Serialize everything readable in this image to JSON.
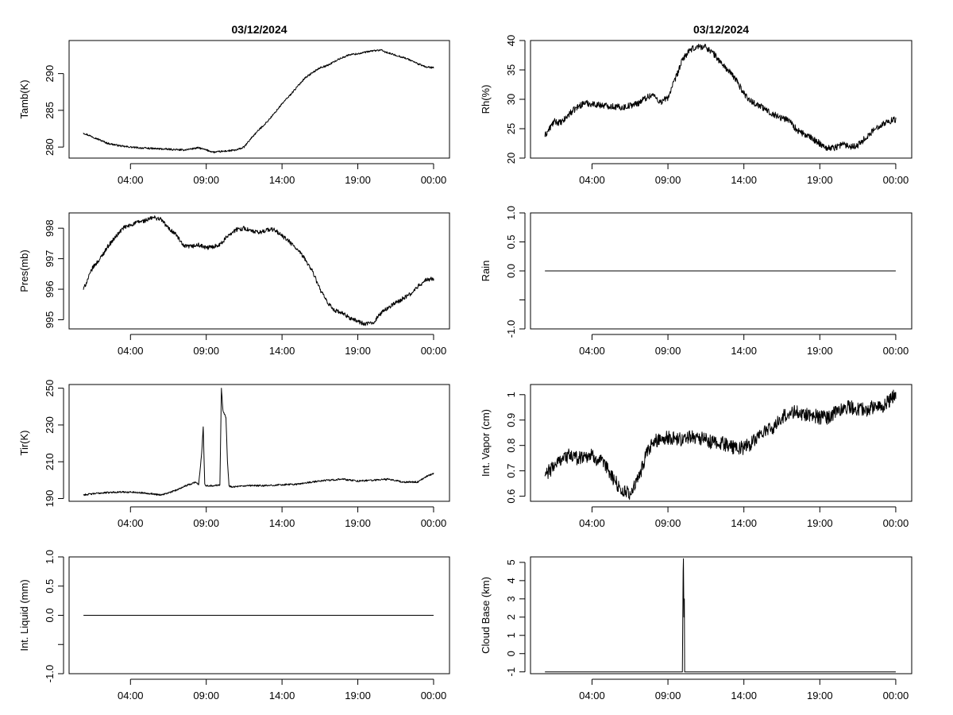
{
  "chart_data": [
    {
      "type": "line",
      "title": "03/12/2024",
      "ylabel": "Tamb(K)",
      "xlabel": "",
      "x_tick_labels": [
        "04:00",
        "09:00",
        "14:00",
        "19:00",
        "00:00"
      ],
      "x_ticks": [
        4,
        9,
        14,
        19,
        24
      ],
      "xlim": [
        -0.05,
        25.05
      ],
      "x_data_range": [
        0.9,
        24
      ],
      "yticks": [
        280,
        285,
        290
      ],
      "ylim": [
        278.5,
        294.5
      ],
      "noise": 0.12,
      "series": [
        {
          "name": "Tamb",
          "x": [
            0.9,
            1.5,
            2.5,
            3.5,
            4.5,
            5.5,
            6.5,
            7.5,
            8.5,
            9.0,
            9.5,
            10.0,
            10.5,
            11.0,
            11.5,
            12.0,
            12.5,
            13.0,
            13.5,
            14.0,
            14.5,
            15.0,
            15.5,
            16.0,
            16.5,
            17.0,
            17.5,
            18.0,
            18.5,
            19.0,
            19.5,
            20.0,
            20.5,
            21.0,
            21.5,
            22.0,
            22.5,
            23.0,
            23.5,
            24.0
          ],
          "values": [
            281.9,
            281.4,
            280.5,
            280.1,
            279.9,
            279.8,
            279.7,
            279.6,
            279.9,
            279.6,
            279.3,
            279.4,
            279.5,
            279.6,
            280.0,
            281.3,
            282.4,
            283.4,
            284.6,
            285.9,
            287.0,
            288.2,
            289.4,
            290.1,
            290.8,
            291.1,
            291.7,
            292.2,
            292.6,
            292.7,
            292.9,
            293.1,
            293.2,
            292.8,
            292.5,
            292.2,
            291.8,
            291.3,
            290.9,
            290.8
          ]
        }
      ]
    },
    {
      "type": "line",
      "title": "03/12/2024",
      "ylabel": "Rh(%)",
      "xlabel": "",
      "x_tick_labels": [
        "04:00",
        "09:00",
        "14:00",
        "19:00",
        "00:00"
      ],
      "x_ticks": [
        4,
        9,
        14,
        19,
        24
      ],
      "xlim": [
        -0.05,
        25.05
      ],
      "x_data_range": [
        0.9,
        24
      ],
      "yticks": [
        20,
        25,
        30,
        35,
        40
      ],
      "ylim": [
        20,
        40
      ],
      "noise": 0.55,
      "series": [
        {
          "name": "Rh",
          "x": [
            0.9,
            1.5,
            2.0,
            2.5,
            3.0,
            3.5,
            4.0,
            5.0,
            6.0,
            7.0,
            7.5,
            8.0,
            8.5,
            9.0,
            9.5,
            10.0,
            10.5,
            11.0,
            11.5,
            12.0,
            12.5,
            13.0,
            13.5,
            14.0,
            14.5,
            15.0,
            15.5,
            16.0,
            16.5,
            17.0,
            17.5,
            18.0,
            18.5,
            19.0,
            19.5,
            20.0,
            20.5,
            21.0,
            21.5,
            22.0,
            22.5,
            23.0,
            23.5,
            24.0
          ],
          "values": [
            23.8,
            26.2,
            26.0,
            27.5,
            28.6,
            29.4,
            29.2,
            28.9,
            28.6,
            29.3,
            30.2,
            30.8,
            29.5,
            30.3,
            33.5,
            37.0,
            38.4,
            39.0,
            38.9,
            37.8,
            36.2,
            34.8,
            33.3,
            31.0,
            29.6,
            29.0,
            28.1,
            27.4,
            26.8,
            26.5,
            24.7,
            24.0,
            23.3,
            22.5,
            21.7,
            21.8,
            22.4,
            22.0,
            22.2,
            23.4,
            24.6,
            25.7,
            26.2,
            26.6
          ]
        }
      ]
    },
    {
      "type": "line",
      "title": "",
      "ylabel": "Pres(mb)",
      "xlabel": "",
      "x_tick_labels": [
        "04:00",
        "09:00",
        "14:00",
        "19:00",
        "00:00"
      ],
      "x_ticks": [
        4,
        9,
        14,
        19,
        24
      ],
      "xlim": [
        -0.05,
        25.05
      ],
      "x_data_range": [
        0.9,
        24
      ],
      "yticks": [
        995,
        996,
        997,
        998
      ],
      "ylim": [
        994.7,
        998.5
      ],
      "noise": 0.07,
      "series": [
        {
          "name": "Pres",
          "x": [
            0.9,
            1.5,
            2.0,
            2.5,
            3.0,
            3.5,
            4.0,
            4.5,
            5.0,
            5.5,
            6.0,
            6.5,
            7.0,
            7.5,
            8.0,
            8.5,
            9.0,
            9.5,
            10.0,
            10.5,
            11.0,
            11.5,
            12.0,
            12.5,
            13.0,
            13.5,
            14.0,
            14.5,
            15.0,
            15.5,
            16.0,
            16.5,
            17.0,
            17.5,
            18.0,
            18.5,
            19.0,
            19.5,
            20.0,
            20.5,
            21.0,
            21.5,
            22.0,
            22.5,
            23.0,
            23.5,
            24.0
          ],
          "values": [
            996.0,
            996.7,
            997.0,
            997.4,
            997.7,
            998.0,
            998.1,
            998.2,
            998.25,
            998.35,
            998.3,
            998.0,
            997.8,
            997.4,
            997.4,
            997.45,
            997.35,
            997.4,
            997.5,
            997.8,
            997.95,
            998.0,
            997.9,
            997.85,
            997.95,
            997.95,
            997.75,
            997.55,
            997.3,
            997.0,
            996.6,
            996.0,
            995.55,
            995.3,
            995.2,
            995.05,
            994.95,
            994.85,
            994.9,
            995.2,
            995.4,
            995.55,
            995.7,
            995.85,
            996.1,
            996.3,
            996.35
          ]
        }
      ]
    },
    {
      "type": "line",
      "title": "",
      "ylabel": "Rain",
      "xlabel": "",
      "x_tick_labels": [
        "04:00",
        "09:00",
        "14:00",
        "19:00",
        "00:00"
      ],
      "x_ticks": [
        4,
        9,
        14,
        19,
        24
      ],
      "xlim": [
        -0.05,
        25.05
      ],
      "x_data_range": [
        0.9,
        24
      ],
      "yticks": [
        -1.0,
        -0.5,
        0.0,
        0.5,
        1.0
      ],
      "ytick_labels": [
        "-1.0",
        "",
        "0.0",
        "0.5",
        "1.0"
      ],
      "ylim": [
        -1.0,
        1.0
      ],
      "noise": 0,
      "series": [
        {
          "name": "Rain",
          "x": [
            0.9,
            24.0
          ],
          "values": [
            0.0,
            0.0
          ]
        }
      ]
    },
    {
      "type": "line",
      "title": "",
      "ylabel": "Tir(K)",
      "xlabel": "",
      "x_tick_labels": [
        "04:00",
        "09:00",
        "14:00",
        "19:00",
        "00:00"
      ],
      "x_ticks": [
        4,
        9,
        14,
        19,
        24
      ],
      "xlim": [
        -0.05,
        25.05
      ],
      "x_data_range": [
        0.9,
        24
      ],
      "yticks": [
        190,
        210,
        230,
        250
      ],
      "ylim": [
        188.5,
        252
      ],
      "noise": 0.45,
      "series": [
        {
          "name": "Tir",
          "x": [
            0.9,
            2.0,
            3.0,
            4.0,
            5.0,
            5.5,
            6.0,
            6.5,
            7.0,
            7.5,
            8.0,
            8.3,
            8.5,
            8.7,
            8.8,
            8.9,
            9.0,
            9.5,
            9.9,
            10.0,
            10.1,
            10.3,
            10.4,
            10.5,
            10.6,
            11.0,
            12.0,
            13.0,
            14.0,
            15.0,
            16.0,
            17.0,
            18.0,
            19.0,
            20.0,
            21.0,
            22.0,
            23.0,
            23.5,
            24.0
          ],
          "values": [
            192.0,
            193.0,
            193.5,
            193.5,
            193.0,
            192.5,
            192.0,
            193.0,
            194.5,
            196.5,
            198.0,
            199.0,
            197.5,
            215.0,
            229.0,
            198.0,
            197.0,
            197.0,
            197.5,
            250.0,
            238.0,
            234.0,
            210.0,
            197.0,
            196.5,
            196.5,
            197.0,
            197.0,
            197.5,
            197.8,
            199.0,
            200.0,
            200.5,
            199.5,
            200.0,
            200.5,
            199.0,
            199.0,
            202.0,
            203.5
          ]
        }
      ]
    },
    {
      "type": "line",
      "title": "",
      "ylabel": "Int. Vapor (cm)",
      "xlabel": "",
      "x_tick_labels": [
        "04:00",
        "09:00",
        "14:00",
        "19:00",
        "00:00"
      ],
      "x_ticks": [
        4,
        9,
        14,
        19,
        24
      ],
      "xlim": [
        -0.05,
        25.05
      ],
      "x_data_range": [
        0.9,
        24
      ],
      "yticks": [
        0.6,
        0.7,
        0.8,
        0.9,
        1.0
      ],
      "ylim": [
        0.58,
        1.04
      ],
      "noise": 0.028,
      "series": [
        {
          "name": "Int. Vapor",
          "x": [
            0.9,
            1.5,
            2.0,
            2.5,
            3.0,
            3.5,
            4.0,
            4.5,
            5.0,
            5.5,
            6.0,
            6.5,
            7.0,
            7.5,
            8.0,
            8.5,
            9.0,
            9.5,
            10.0,
            10.5,
            11.0,
            11.5,
            12.0,
            12.5,
            13.0,
            13.5,
            14.0,
            14.5,
            15.0,
            15.5,
            16.0,
            16.5,
            17.0,
            17.5,
            18.0,
            18.5,
            19.0,
            19.5,
            20.0,
            20.5,
            21.0,
            21.5,
            22.0,
            22.5,
            23.0,
            23.5,
            24.0
          ],
          "values": [
            0.68,
            0.72,
            0.75,
            0.76,
            0.75,
            0.76,
            0.76,
            0.74,
            0.71,
            0.66,
            0.62,
            0.61,
            0.66,
            0.75,
            0.81,
            0.83,
            0.83,
            0.83,
            0.82,
            0.84,
            0.83,
            0.82,
            0.81,
            0.81,
            0.8,
            0.79,
            0.79,
            0.81,
            0.84,
            0.86,
            0.87,
            0.91,
            0.93,
            0.93,
            0.92,
            0.92,
            0.91,
            0.91,
            0.93,
            0.95,
            0.95,
            0.94,
            0.94,
            0.95,
            0.95,
            0.97,
            1.01
          ]
        }
      ]
    },
    {
      "type": "line",
      "title": "",
      "ylabel": "Int. Liquid (mm)",
      "xlabel": "",
      "x_tick_labels": [
        "04:00",
        "09:00",
        "14:00",
        "19:00",
        "00:00"
      ],
      "x_ticks": [
        4,
        9,
        14,
        19,
        24
      ],
      "xlim": [
        -0.05,
        25.05
      ],
      "x_data_range": [
        0.9,
        24
      ],
      "yticks": [
        -1.0,
        -0.5,
        0.0,
        0.5,
        1.0
      ],
      "ytick_labels": [
        "-1.0",
        "",
        "0.0",
        "0.5",
        "1.0"
      ],
      "ylim": [
        -1.0,
        1.0
      ],
      "noise": 0,
      "series": [
        {
          "name": "Int. Liquid",
          "x": [
            0.9,
            24.0
          ],
          "values": [
            0.0,
            0.0
          ]
        }
      ]
    },
    {
      "type": "line",
      "title": "",
      "ylabel": "Cloud Base (km)",
      "xlabel": "",
      "x_tick_labels": [
        "04:00",
        "09:00",
        "14:00",
        "19:00",
        "00:00"
      ],
      "x_ticks": [
        4,
        9,
        14,
        19,
        24
      ],
      "xlim": [
        -0.05,
        25.05
      ],
      "x_data_range": [
        0.9,
        24
      ],
      "yticks": [
        -1,
        0,
        1,
        2,
        3,
        4,
        5
      ],
      "ylim": [
        -1.1,
        5.3
      ],
      "noise": 0,
      "series": [
        {
          "name": "Cloud Base",
          "x": [
            0.9,
            9.95,
            10.0,
            10.02,
            10.05,
            10.08,
            10.1,
            10.15,
            24.0
          ],
          "values": [
            -1.0,
            -1.0,
            4.5,
            5.2,
            2.0,
            3.0,
            -1.0,
            -1.0,
            -1.0
          ]
        }
      ]
    }
  ]
}
